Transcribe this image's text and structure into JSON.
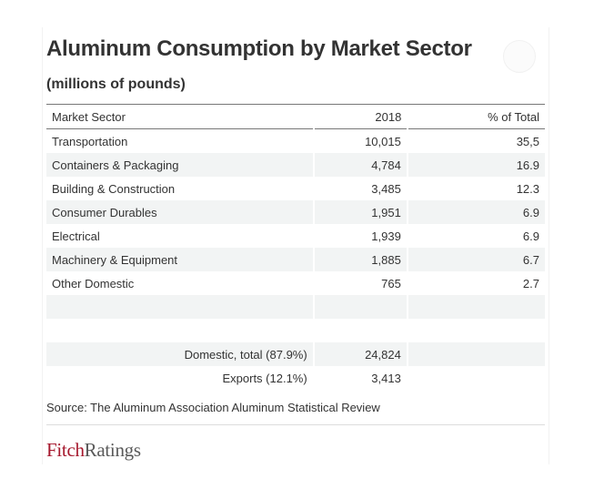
{
  "title": "Aluminum Consumption by Market Sector",
  "subtitle": "(millions of pounds)",
  "columns": [
    "Market Sector",
    "2018",
    "% of Total"
  ],
  "rows": [
    {
      "sector": "Transportation",
      "value": "10,015",
      "pct": "35,5"
    },
    {
      "sector": "Containers & Packaging",
      "value": "4,784",
      "pct": "16.9"
    },
    {
      "sector": "Building & Construction",
      "value": "3,485",
      "pct": "12.3"
    },
    {
      "sector": "Consumer Durables",
      "value": "1,951",
      "pct": "6.9"
    },
    {
      "sector": "Electrical",
      "value": "1,939",
      "pct": "6.9"
    },
    {
      "sector": "Machinery & Equipment",
      "value": "1,885",
      "pct": "6.7"
    },
    {
      "sector": "Other Domestic",
      "value": "765",
      "pct": "2.7"
    }
  ],
  "totals": [
    {
      "label": "Domestic, total (87.9%)",
      "value": "24,824"
    },
    {
      "label": "Exports (12.1%)",
      "value": "3,413"
    }
  ],
  "source": "Source: The Aluminum Association Aluminum Statistical Review",
  "logo": {
    "part1": "Fitch",
    "part2": "Ratings"
  },
  "colors": {
    "brand_red": "#a6192e",
    "row_shade": "#f2f4f4"
  },
  "icons": {
    "corner": "expand-icon"
  }
}
